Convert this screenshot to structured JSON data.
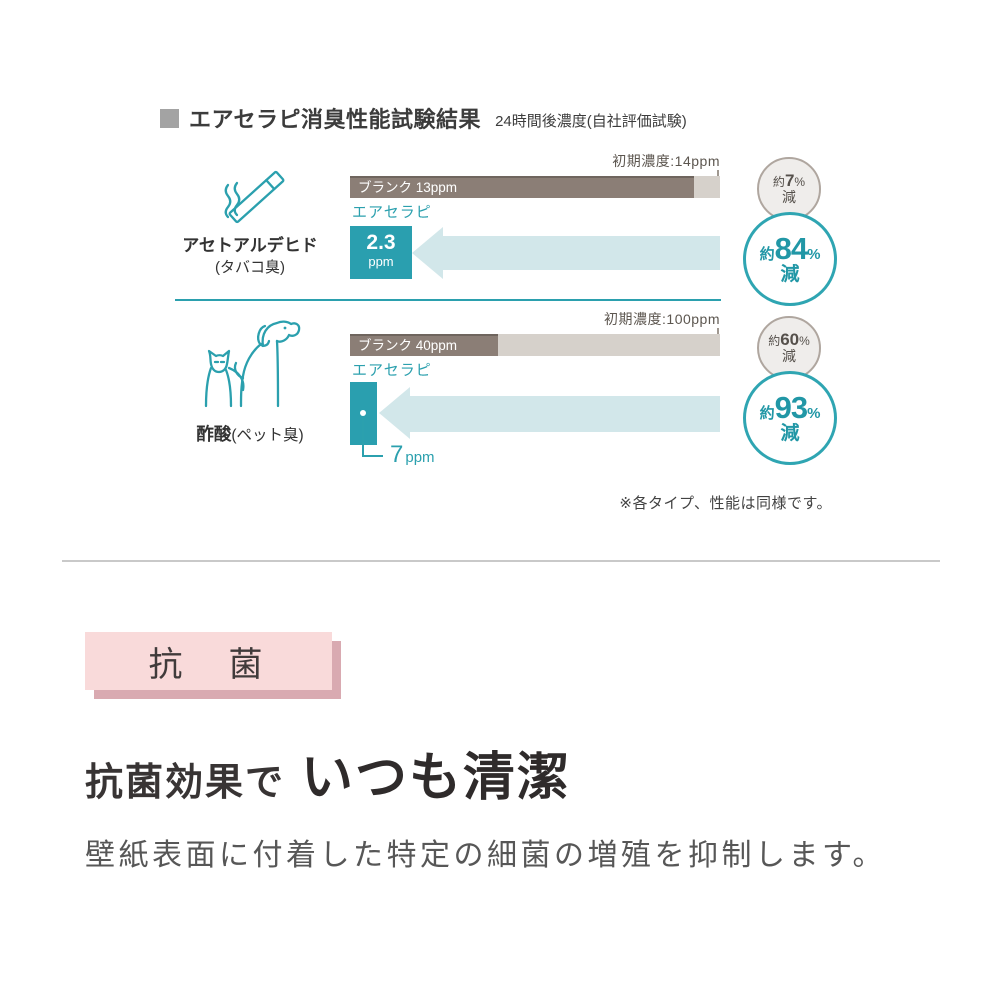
{
  "chart": {
    "title": "エアセラピ消臭性能試験結果",
    "subtitle": "24時間後濃度(自社評価試験)",
    "footnote": "※各タイプ、性能は同様です。",
    "rows": [
      {
        "icon": "cigarette",
        "label": "アセトアルデヒド",
        "sublabel": "(タバコ臭)",
        "initial_label": "初期濃度:14ppm",
        "blank_label": "ブランク 13ppm",
        "blank_pct": 92.9,
        "product_label": "エアセラピ",
        "result_value": "2.3",
        "result_unit": "ppm",
        "result_pct": 16.4,
        "blank_badge": {
          "about": "約",
          "num": "7",
          "pct": "%",
          "word": "減"
        },
        "product_badge": {
          "about": "約",
          "num": "84",
          "pct": "%",
          "word": "減"
        }
      },
      {
        "icon": "cat-and-dog",
        "label": "酢酸",
        "sublabel": "(ペット臭)",
        "initial_label": "初期濃度:100ppm",
        "blank_label": "ブランク 40ppm",
        "blank_pct": 40,
        "product_label": "エアセラピ",
        "result_value": "7",
        "result_unit": "ppm",
        "result_pct": 7,
        "blank_badge": {
          "about": "約",
          "num": "60",
          "pct": "%",
          "word": "減"
        },
        "product_badge": {
          "about": "約",
          "num": "93",
          "pct": "%",
          "word": "減"
        }
      }
    ]
  },
  "antibacterial": {
    "badge": "抗　菌",
    "heading_lead": "抗菌効果で",
    "heading_main": "いつも清潔",
    "body": "壁紙表面に付着した特定の細菌の増殖を抑制します。"
  },
  "colors": {
    "teal": "#2BA0AE",
    "teal_light": "#D2E7EA",
    "bar_dark": "#8B7E76",
    "bar_light": "#D6D1CB",
    "gray_badge_border": "#AFA69F",
    "gray_badge_bg": "#EFEDEB",
    "pink_badge_bg": "#F9DADA",
    "pink_badge_shadow": "#D9AAB1"
  },
  "chart_data": {
    "type": "bar",
    "orientation": "horizontal",
    "title": "エアセラピ消臭性能試験結果",
    "subtitle": "24時間後濃度(自社評価試験)",
    "unit": "ppm",
    "categories": [
      "アセトアルデヒド(タバコ臭)",
      "酢酸(ペット臭)"
    ],
    "series": [
      {
        "name": "初期濃度",
        "values": [
          14,
          100
        ]
      },
      {
        "name": "ブランク",
        "values": [
          13,
          40
        ],
        "reduction_vs_initial": [
          "約7%減",
          "約60%減"
        ]
      },
      {
        "name": "エアセラピ",
        "values": [
          2.3,
          7
        ],
        "reduction_vs_initial": [
          "約84%減",
          "約93%減"
        ]
      }
    ],
    "note": "※各タイプ、性能は同様です。",
    "layout": "each row's bar length is normalized to its initial concentration; エアセラピ value drawn as teal box with left-pointing arrow"
  }
}
